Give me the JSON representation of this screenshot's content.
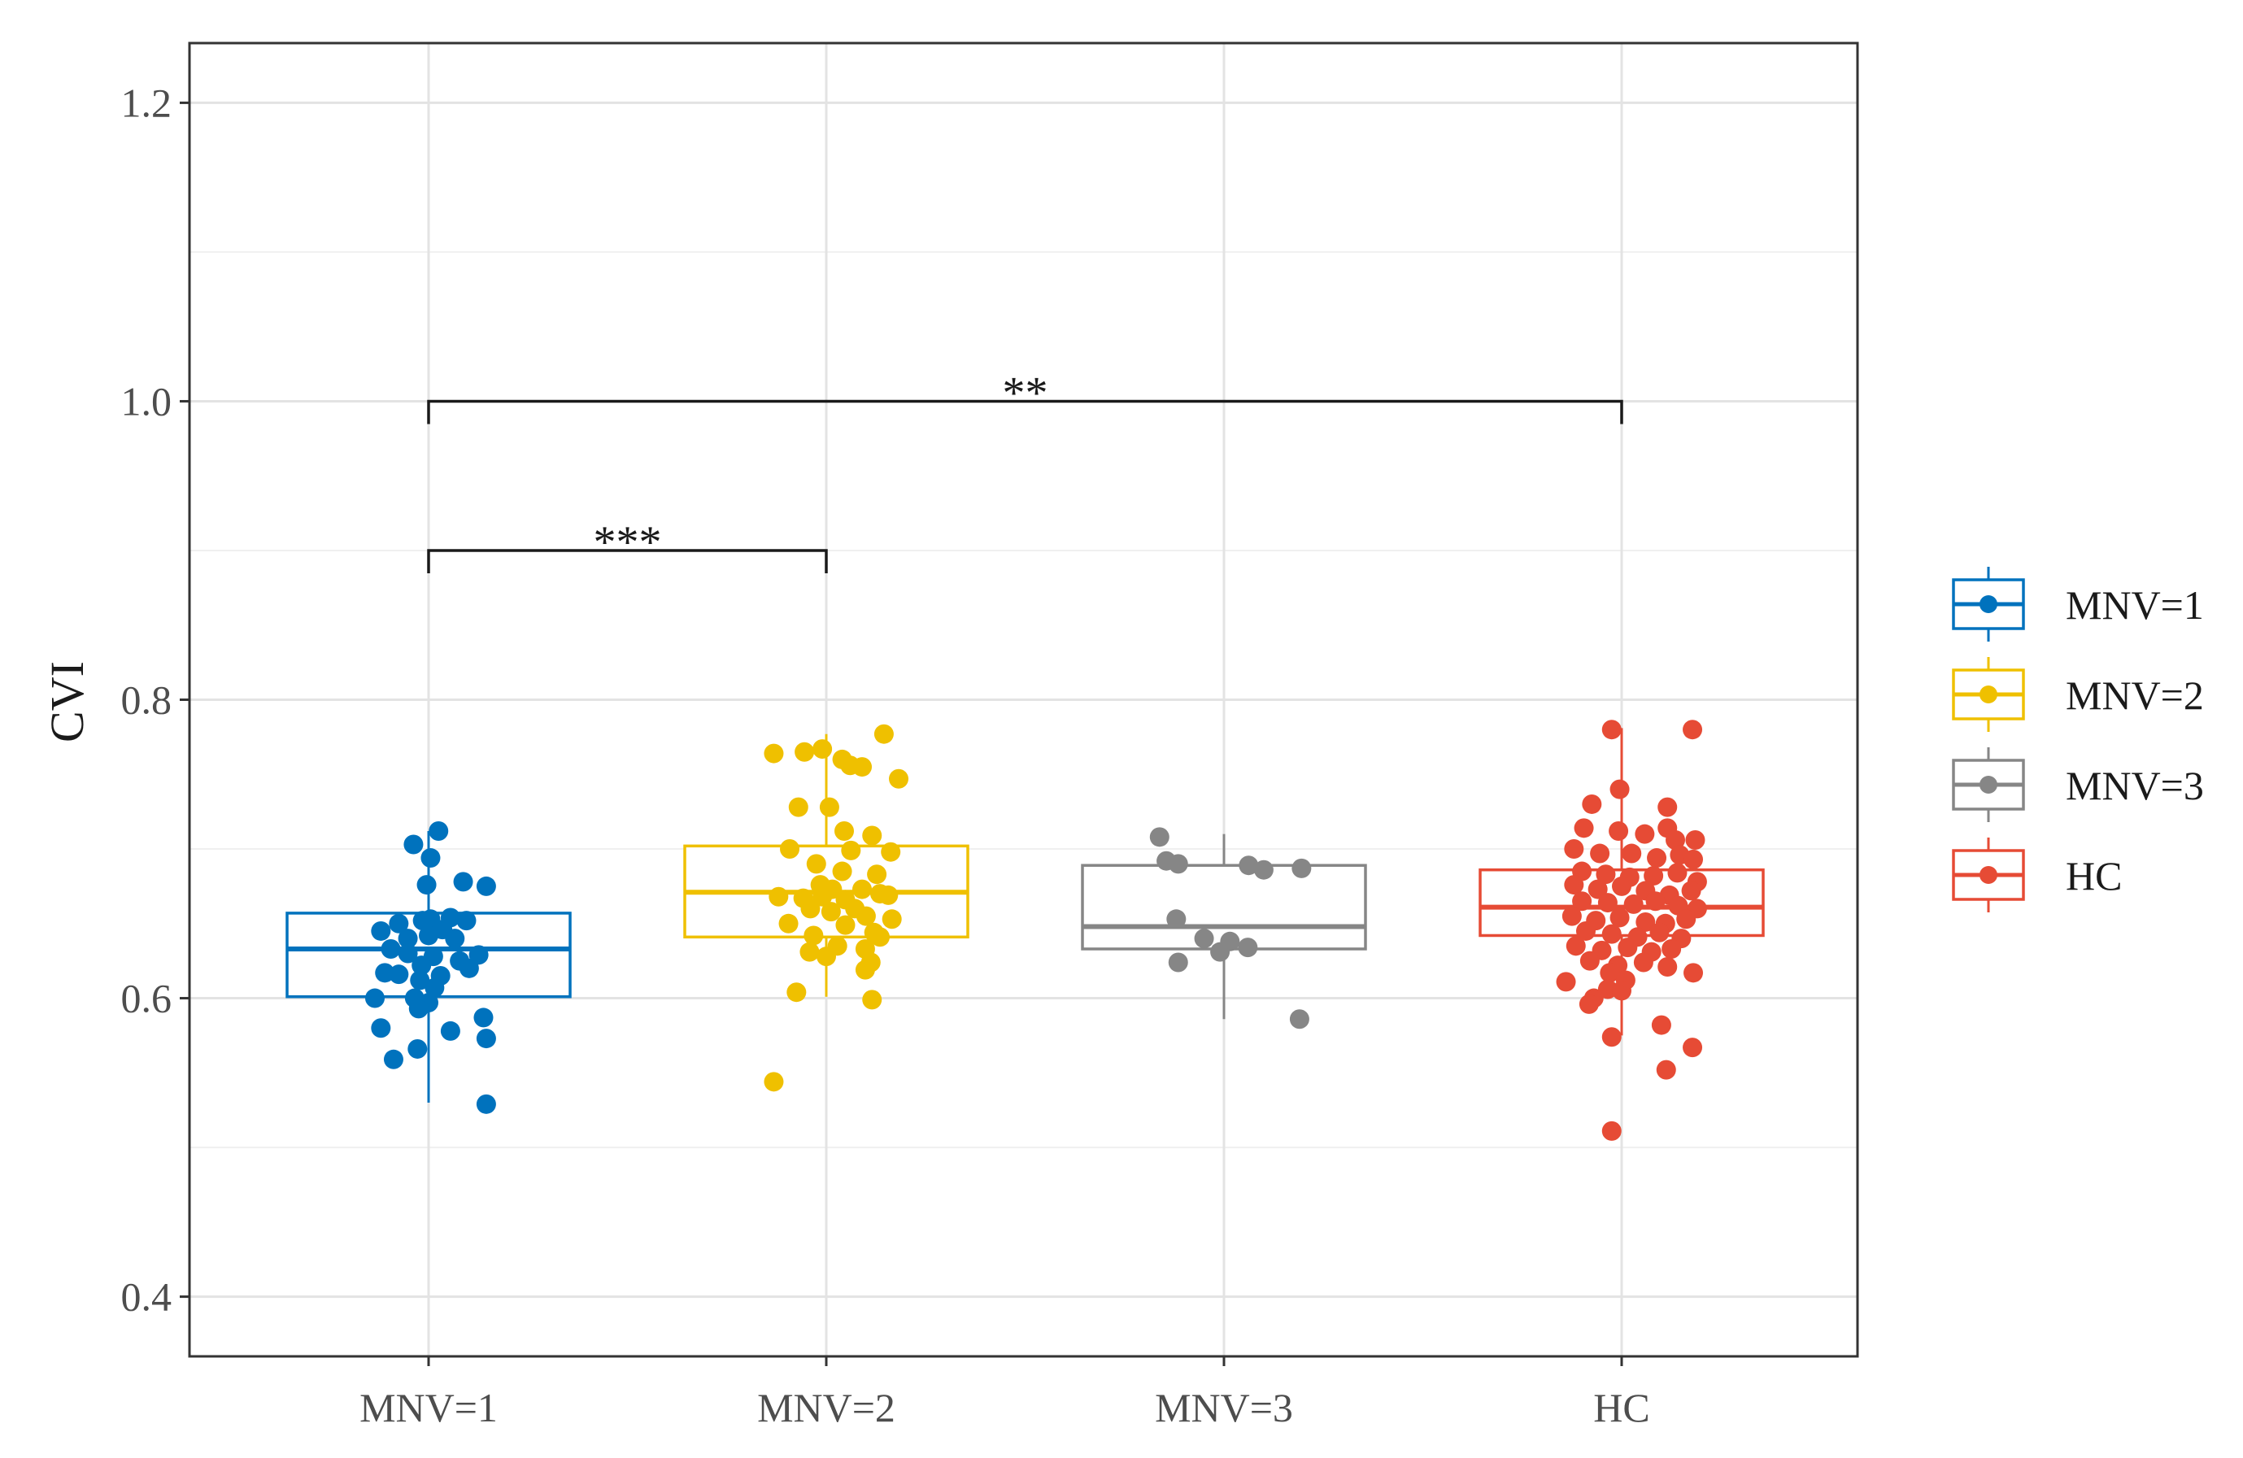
{
  "chart_data": {
    "type": "boxplot",
    "title": "",
    "xlabel": "",
    "ylabel": "CVI",
    "ylim": [
      0.36,
      1.24
    ],
    "yticks": [
      0.4,
      0.6,
      0.8,
      1.0,
      1.2
    ],
    "ytick_labels": [
      "0.4",
      "0.6",
      "0.8",
      "1.0",
      "1.2"
    ],
    "categories": [
      "MNV=1",
      "MNV=2",
      "MNV=3",
      "HC"
    ],
    "legend_position": "right",
    "series": [
      {
        "name": "MNV=1",
        "color": "#0072BD",
        "box": {
          "whisker_low": 0.53,
          "q1": 0.601,
          "median": 0.633,
          "q3": 0.657,
          "whisker_high": 0.712
        },
        "points": [
          [
            0.962,
            0.703
          ],
          [
            1.025,
            0.712
          ],
          [
            1.005,
            0.694
          ],
          [
            0.995,
            0.676
          ],
          [
            1.087,
            0.678
          ],
          [
            1.145,
            0.675
          ],
          [
            0.925,
            0.65
          ],
          [
            0.985,
            0.652
          ],
          [
            1.005,
            0.653
          ],
          [
            1.055,
            0.654
          ],
          [
            1.095,
            0.652
          ],
          [
            1.035,
            0.646
          ],
          [
            0.88,
            0.645
          ],
          [
            0.948,
            0.64
          ],
          [
            1.0,
            0.642
          ],
          [
            1.066,
            0.64
          ],
          [
            0.905,
            0.633
          ],
          [
            0.948,
            0.63
          ],
          [
            1.012,
            0.628
          ],
          [
            1.078,
            0.625
          ],
          [
            1.126,
            0.629
          ],
          [
            0.982,
            0.622
          ],
          [
            1.102,
            0.62
          ],
          [
            0.89,
            0.617
          ],
          [
            0.925,
            0.616
          ],
          [
            1.03,
            0.615
          ],
          [
            0.978,
            0.612
          ],
          [
            1.015,
            0.607
          ],
          [
            0.865,
            0.6
          ],
          [
            0.965,
            0.6
          ],
          [
            1.0,
            0.597
          ],
          [
            0.975,
            0.593
          ],
          [
            1.138,
            0.587
          ],
          [
            0.88,
            0.58
          ],
          [
            1.055,
            0.578
          ],
          [
            1.145,
            0.573
          ],
          [
            0.972,
            0.566
          ],
          [
            0.912,
            0.559
          ],
          [
            1.145,
            0.529
          ]
        ]
      },
      {
        "name": "MNV=2",
        "color": "#EFC000",
        "box": {
          "whisker_low": 0.601,
          "q1": 0.641,
          "median": 0.671,
          "q3": 0.702,
          "whisker_high": 0.777
        },
        "points": [
          [
            2.145,
            0.777
          ],
          [
            1.868,
            0.764
          ],
          [
            1.945,
            0.765
          ],
          [
            1.99,
            0.767
          ],
          [
            2.04,
            0.76
          ],
          [
            2.06,
            0.756
          ],
          [
            2.09,
            0.755
          ],
          [
            2.182,
            0.747
          ],
          [
            1.93,
            0.728
          ],
          [
            2.008,
            0.728
          ],
          [
            2.045,
            0.712
          ],
          [
            2.115,
            0.709
          ],
          [
            1.908,
            0.7
          ],
          [
            2.062,
            0.699
          ],
          [
            2.162,
            0.698
          ],
          [
            1.975,
            0.69
          ],
          [
            2.04,
            0.685
          ],
          [
            2.127,
            0.683
          ],
          [
            1.985,
            0.676
          ],
          [
            2.015,
            0.673
          ],
          [
            2.09,
            0.673
          ],
          [
            2.135,
            0.67
          ],
          [
            1.88,
            0.668
          ],
          [
            1.942,
            0.667
          ],
          [
            1.99,
            0.668
          ],
          [
            2.048,
            0.666
          ],
          [
            2.156,
            0.669
          ],
          [
            1.96,
            0.66
          ],
          [
            2.012,
            0.658
          ],
          [
            2.072,
            0.66
          ],
          [
            2.1,
            0.655
          ],
          [
            2.165,
            0.653
          ],
          [
            1.905,
            0.65
          ],
          [
            2.048,
            0.649
          ],
          [
            2.12,
            0.644
          ],
          [
            1.968,
            0.642
          ],
          [
            2.135,
            0.641
          ],
          [
            2.028,
            0.635
          ],
          [
            2.098,
            0.633
          ],
          [
            1.958,
            0.631
          ],
          [
            2.0,
            0.628
          ],
          [
            2.112,
            0.624
          ],
          [
            2.098,
            0.619
          ],
          [
            1.925,
            0.604
          ],
          [
            2.115,
            0.599
          ],
          [
            1.868,
            0.544
          ]
        ]
      },
      {
        "name": "MNV=3",
        "color": "#868686",
        "box": {
          "whisker_low": 0.586,
          "q1": 0.633,
          "median": 0.648,
          "q3": 0.689,
          "whisker_high": 0.71
        },
        "points": [
          [
            2.838,
            0.708
          ],
          [
            2.855,
            0.692
          ],
          [
            2.885,
            0.69
          ],
          [
            3.062,
            0.689
          ],
          [
            3.1,
            0.686
          ],
          [
            3.195,
            0.687
          ],
          [
            2.88,
            0.653
          ],
          [
            2.95,
            0.64
          ],
          [
            3.015,
            0.638
          ],
          [
            3.06,
            0.634
          ],
          [
            2.99,
            0.631
          ],
          [
            2.885,
            0.624
          ],
          [
            3.19,
            0.586
          ]
        ]
      },
      {
        "name": "HC",
        "color": "#E64B35",
        "box": {
          "whisker_low": 0.575,
          "q1": 0.642,
          "median": 0.661,
          "q3": 0.686,
          "whisker_high": 0.781
        },
        "points": [
          [
            3.975,
            0.78
          ],
          [
            4.178,
            0.78
          ],
          [
            3.925,
            0.73
          ],
          [
            3.995,
            0.74
          ],
          [
            4.115,
            0.728
          ],
          [
            3.905,
            0.714
          ],
          [
            3.992,
            0.712
          ],
          [
            4.058,
            0.71
          ],
          [
            4.115,
            0.714
          ],
          [
            4.135,
            0.706
          ],
          [
            4.185,
            0.706
          ],
          [
            3.88,
            0.7
          ],
          [
            3.945,
            0.697
          ],
          [
            4.025,
            0.697
          ],
          [
            4.088,
            0.694
          ],
          [
            4.146,
            0.696
          ],
          [
            4.18,
            0.693
          ],
          [
            3.9,
            0.685
          ],
          [
            3.96,
            0.683
          ],
          [
            4.02,
            0.681
          ],
          [
            4.08,
            0.682
          ],
          [
            4.14,
            0.684
          ],
          [
            4.19,
            0.678
          ],
          [
            3.88,
            0.676
          ],
          [
            3.94,
            0.673
          ],
          [
            4.0,
            0.675
          ],
          [
            4.06,
            0.672
          ],
          [
            4.12,
            0.669
          ],
          [
            4.175,
            0.672
          ],
          [
            3.9,
            0.665
          ],
          [
            3.965,
            0.664
          ],
          [
            4.03,
            0.663
          ],
          [
            4.085,
            0.665
          ],
          [
            4.142,
            0.662
          ],
          [
            4.19,
            0.66
          ],
          [
            3.875,
            0.655
          ],
          [
            3.935,
            0.652
          ],
          [
            3.995,
            0.654
          ],
          [
            4.06,
            0.651
          ],
          [
            4.11,
            0.65
          ],
          [
            4.162,
            0.653
          ],
          [
            3.91,
            0.645
          ],
          [
            3.975,
            0.643
          ],
          [
            4.04,
            0.641
          ],
          [
            4.095,
            0.644
          ],
          [
            4.15,
            0.64
          ],
          [
            3.885,
            0.635
          ],
          [
            3.95,
            0.632
          ],
          [
            4.015,
            0.634
          ],
          [
            4.075,
            0.631
          ],
          [
            4.125,
            0.633
          ],
          [
            3.92,
            0.625
          ],
          [
            3.99,
            0.622
          ],
          [
            4.055,
            0.624
          ],
          [
            4.115,
            0.621
          ],
          [
            4.18,
            0.617
          ],
          [
            3.97,
            0.617
          ],
          [
            4.01,
            0.612
          ],
          [
            3.86,
            0.611
          ],
          [
            3.965,
            0.606
          ],
          [
            4.0,
            0.605
          ],
          [
            3.93,
            0.6
          ],
          [
            3.918,
            0.596
          ],
          [
            4.1,
            0.582
          ],
          [
            3.975,
            0.574
          ],
          [
            4.178,
            0.567
          ],
          [
            4.112,
            0.552
          ],
          [
            3.975,
            0.511
          ]
        ]
      }
    ],
    "comparisons": [
      {
        "from": "MNV=1",
        "to": "MNV=2",
        "y": 0.9,
        "label": "***"
      },
      {
        "from": "MNV=1",
        "to": "HC",
        "y": 1.0,
        "label": "**"
      }
    ]
  }
}
